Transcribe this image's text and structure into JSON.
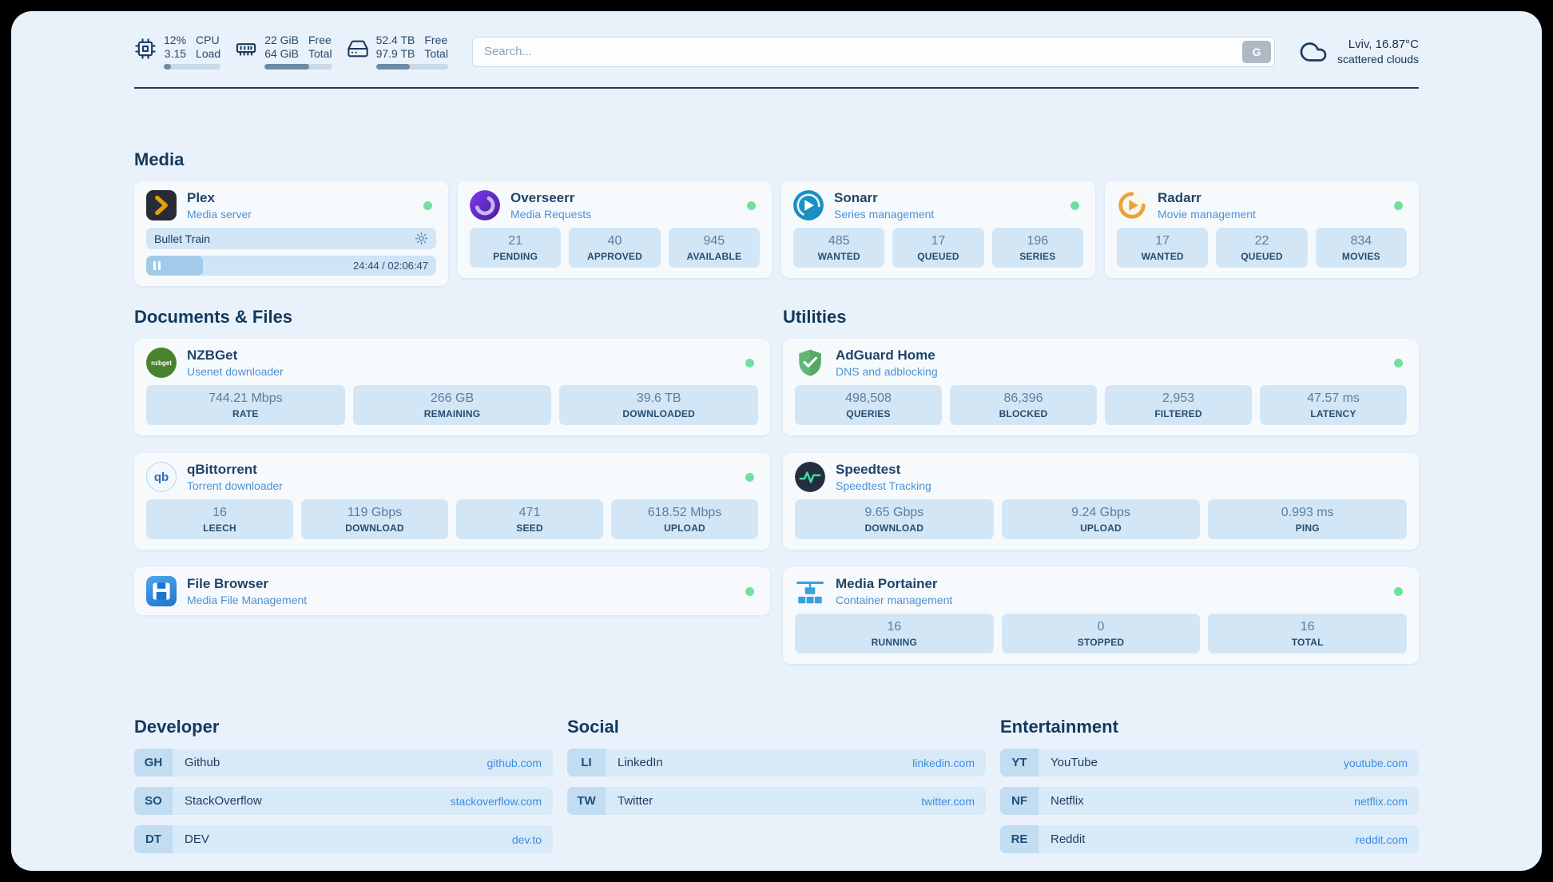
{
  "colors": {
    "page_bg": "#e9f2fa",
    "tile_bg": "#d2e6f6",
    "accent_blue": "#3c8ce0",
    "status_online": "#72e09c",
    "heading": "#13395e"
  },
  "header": {
    "monitors": {
      "cpu": {
        "value1": "12%",
        "label1": "CPU",
        "value2": "3.15",
        "label2": "Load",
        "progress": 12
      },
      "ram": {
        "value1": "22 GiB",
        "label1": "Free",
        "value2": "64 GiB",
        "label2": "Total",
        "progress": 66
      },
      "disk": {
        "value1": "52.4 TB",
        "label1": "Free",
        "value2": "97.9 TB",
        "label2": "Total",
        "progress": 47
      }
    },
    "search": {
      "placeholder": "Search...",
      "provider_label": "G"
    },
    "weather": {
      "location": "Lviv, 16.87°C",
      "condition": "scattered clouds"
    }
  },
  "sections": {
    "media": "Media",
    "documents": "Documents & Files",
    "utilities": "Utilities"
  },
  "services": {
    "plex": {
      "name": "Plex",
      "desc": "Media server",
      "status": "online",
      "now_playing": {
        "title": "Bullet Train",
        "time": "24:44 / 02:06:47",
        "progress": 19.5
      }
    },
    "overseerr": {
      "name": "Overseerr",
      "desc": "Media Requests",
      "status": "online",
      "stats": [
        {
          "value": "21",
          "label": "PENDING"
        },
        {
          "value": "40",
          "label": "APPROVED"
        },
        {
          "value": "945",
          "label": "AVAILABLE"
        }
      ]
    },
    "sonarr": {
      "name": "Sonarr",
      "desc": "Series management",
      "status": "online",
      "stats": [
        {
          "value": "485",
          "label": "WANTED"
        },
        {
          "value": "17",
          "label": "QUEUED"
        },
        {
          "value": "196",
          "label": "SERIES"
        }
      ]
    },
    "radarr": {
      "name": "Radarr",
      "desc": "Movie management",
      "status": "online",
      "stats": [
        {
          "value": "17",
          "label": "WANTED"
        },
        {
          "value": "22",
          "label": "QUEUED"
        },
        {
          "value": "834",
          "label": "MOVIES"
        }
      ]
    },
    "nzbget": {
      "name": "NZBGet",
      "desc": "Usenet downloader",
      "status": "online",
      "icon_text": "nzbget",
      "stats": [
        {
          "value": "744.21 Mbps",
          "label": "RATE"
        },
        {
          "value": "266 GB",
          "label": "REMAINING"
        },
        {
          "value": "39.6 TB",
          "label": "DOWNLOADED"
        }
      ]
    },
    "qbittorrent": {
      "name": "qBittorrent",
      "desc": "Torrent downloader",
      "status": "online",
      "icon_text": "qb",
      "stats": [
        {
          "value": "16",
          "label": "LEECH"
        },
        {
          "value": "119 Gbps",
          "label": "DOWNLOAD"
        },
        {
          "value": "471",
          "label": "SEED"
        },
        {
          "value": "618.52 Mbps",
          "label": "UPLOAD"
        }
      ]
    },
    "filebrowser": {
      "name": "File Browser",
      "desc": "Media File Management",
      "status": "online"
    },
    "adguard": {
      "name": "AdGuard Home",
      "desc": "DNS and adblocking",
      "status": "online",
      "stats": [
        {
          "value": "498,508",
          "label": "QUERIES"
        },
        {
          "value": "86,396",
          "label": "BLOCKED"
        },
        {
          "value": "2,953",
          "label": "FILTERED"
        },
        {
          "value": "47.57 ms",
          "label": "LATENCY"
        }
      ]
    },
    "speedtest": {
      "name": "Speedtest",
      "desc": "Speedtest Tracking",
      "stats": [
        {
          "value": "9.65 Gbps",
          "label": "DOWNLOAD"
        },
        {
          "value": "9.24 Gbps",
          "label": "UPLOAD"
        },
        {
          "value": "0.993 ms",
          "label": "PING"
        }
      ]
    },
    "portainer": {
      "name": "Media Portainer",
      "desc": "Container management",
      "status": "online",
      "stats": [
        {
          "value": "16",
          "label": "RUNNING"
        },
        {
          "value": "0",
          "label": "STOPPED"
        },
        {
          "value": "16",
          "label": "TOTAL"
        }
      ]
    }
  },
  "bookmarks": {
    "developer": {
      "title": "Developer",
      "items": [
        {
          "abbr": "GH",
          "name": "Github",
          "url": "github.com"
        },
        {
          "abbr": "SO",
          "name": "StackOverflow",
          "url": "stackoverflow.com"
        },
        {
          "abbr": "DT",
          "name": "DEV",
          "url": "dev.to"
        }
      ]
    },
    "social": {
      "title": "Social",
      "items": [
        {
          "abbr": "LI",
          "name": "LinkedIn",
          "url": "linkedin.com"
        },
        {
          "abbr": "TW",
          "name": "Twitter",
          "url": "twitter.com"
        }
      ]
    },
    "entertainment": {
      "title": "Entertainment",
      "items": [
        {
          "abbr": "YT",
          "name": "YouTube",
          "url": "youtube.com"
        },
        {
          "abbr": "NF",
          "name": "Netflix",
          "url": "netflix.com"
        },
        {
          "abbr": "RE",
          "name": "Reddit",
          "url": "reddit.com"
        }
      ]
    }
  }
}
